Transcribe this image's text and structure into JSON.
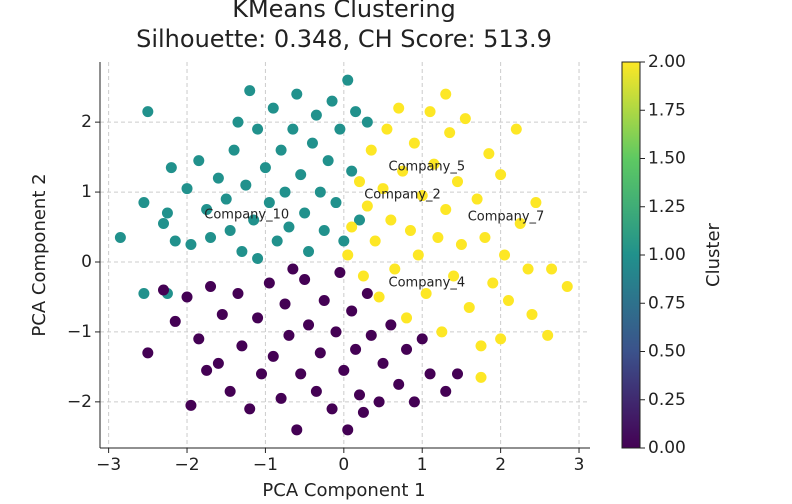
{
  "chart_data": {
    "type": "scatter",
    "title": "KMeans Clustering",
    "subtitle": "Silhouette: 0.348, CH Score: 513.9",
    "xlabel": "PCA Component 1",
    "ylabel": "PCA Component 2",
    "xlim": [
      -3.11,
      3.14
    ],
    "ylim": [
      -2.66,
      2.86
    ],
    "xticks": [
      {
        "value": -3,
        "label": "−3"
      },
      {
        "value": -2,
        "label": "−2"
      },
      {
        "value": -1,
        "label": "−1"
      },
      0,
      1,
      2,
      3
    ],
    "yticks": [
      {
        "value": -2,
        "label": "−2"
      },
      {
        "value": -1,
        "label": "−1"
      },
      0,
      1,
      2
    ],
    "grid": true,
    "x": [
      -2.85,
      -2.55,
      -2.3,
      -2.2,
      -2.25,
      -2.15,
      -2.0,
      -1.95,
      -1.85,
      -1.75,
      -1.7,
      -1.6,
      -1.5,
      -1.45,
      -1.4,
      -1.35,
      -1.3,
      -1.25,
      -1.2,
      -1.15,
      -1.1,
      -1.0,
      -0.95,
      -0.9,
      -0.85,
      -0.8,
      -0.75,
      -0.7,
      -0.65,
      -0.6,
      -0.55,
      -0.5,
      -0.45,
      -0.4,
      -0.35,
      -0.3,
      -0.25,
      -0.2,
      -0.15,
      -0.1,
      -0.05,
      0.0,
      0.05,
      0.1,
      0.15,
      0.2,
      -2.55,
      -2.25,
      -1.1,
      0.3,
      -2.5,
      0.05,
      0.1,
      0.2,
      0.25,
      0.3,
      0.35,
      0.4,
      0.45,
      0.5,
      0.55,
      0.6,
      0.65,
      0.7,
      0.75,
      0.8,
      0.85,
      0.9,
      0.95,
      1.0,
      1.05,
      1.1,
      1.15,
      1.2,
      1.25,
      1.3,
      1.35,
      1.4,
      1.45,
      1.5,
      1.55,
      1.6,
      1.7,
      1.75,
      1.8,
      1.85,
      1.9,
      2.0,
      2.05,
      2.1,
      2.2,
      2.25,
      2.35,
      2.4,
      2.45,
      2.6,
      2.65,
      2.85,
      1.75,
      1.3,
      2.0,
      -2.5,
      -2.3,
      -2.15,
      -2.0,
      -1.95,
      -1.85,
      -1.7,
      -1.6,
      -1.55,
      -1.45,
      -1.35,
      -1.3,
      -1.2,
      -1.1,
      -1.05,
      -0.95,
      -0.9,
      -0.8,
      -0.75,
      -0.7,
      -0.6,
      -0.55,
      -0.5,
      -0.45,
      -0.35,
      -0.3,
      -0.25,
      -0.15,
      -0.1,
      -0.05,
      0.0,
      0.05,
      0.1,
      0.15,
      0.2,
      0.3,
      0.35,
      0.45,
      0.5,
      0.6,
      0.7,
      0.8,
      0.9,
      1.0,
      1.1,
      1.3,
      1.45,
      0.25,
      -0.65,
      -1.75
    ],
    "y": [
      0.35,
      0.85,
      0.55,
      1.35,
      0.7,
      0.3,
      1.05,
      0.25,
      1.45,
      0.75,
      0.35,
      1.2,
      0.9,
      0.45,
      1.6,
      2.0,
      0.15,
      1.1,
      2.45,
      0.6,
      1.9,
      1.35,
      0.85,
      2.2,
      0.3,
      1.6,
      1.0,
      0.5,
      1.9,
      2.4,
      1.25,
      0.7,
      0.15,
      1.7,
      2.1,
      1.0,
      0.45,
      1.45,
      2.3,
      0.85,
      1.9,
      0.3,
      2.6,
      1.3,
      2.15,
      0.6,
      -0.45,
      -0.45,
      0.05,
      2.0,
      2.15,
      0.1,
      0.5,
      1.15,
      -0.2,
      0.8,
      1.6,
      0.3,
      -0.5,
      1.05,
      1.9,
      0.6,
      -0.1,
      2.2,
      1.3,
      -0.8,
      0.45,
      1.7,
      0.1,
      0.95,
      -0.45,
      2.15,
      1.4,
      0.35,
      -1.0,
      0.75,
      1.85,
      -0.2,
      1.15,
      0.25,
      2.05,
      -0.65,
      0.9,
      -1.2,
      0.35,
      1.55,
      -0.3,
      1.25,
      0.1,
      -0.55,
      1.9,
      0.55,
      -0.1,
      -0.75,
      0.85,
      -1.05,
      -0.1,
      -0.35,
      -1.65,
      2.4,
      -1.1,
      -1.3,
      -0.4,
      -0.85,
      -0.5,
      -2.05,
      -1.1,
      -0.35,
      -1.45,
      -0.75,
      -1.85,
      -0.45,
      -1.2,
      -2.1,
      -0.8,
      -1.6,
      -0.3,
      -1.35,
      -1.95,
      -0.6,
      -1.05,
      -2.4,
      -1.6,
      -0.25,
      -0.9,
      -1.85,
      -1.3,
      -0.55,
      -2.1,
      -1.0,
      -0.15,
      -1.55,
      -2.4,
      -0.7,
      -1.25,
      -1.9,
      -0.45,
      -1.05,
      -2.0,
      -1.45,
      -0.9,
      -1.75,
      -1.25,
      -2.0,
      -1.1,
      -1.6,
      -1.85,
      -1.6,
      -2.15,
      -0.1,
      -1.55
    ],
    "c": [
      1,
      1,
      1,
      1,
      1,
      1,
      1,
      1,
      1,
      1,
      1,
      1,
      1,
      1,
      1,
      1,
      1,
      1,
      1,
      1,
      1,
      1,
      1,
      1,
      1,
      1,
      1,
      1,
      1,
      1,
      1,
      1,
      1,
      1,
      1,
      1,
      1,
      1,
      1,
      1,
      1,
      1,
      1,
      1,
      1,
      1,
      1,
      1,
      1,
      1,
      1,
      2,
      2,
      2,
      2,
      2,
      2,
      2,
      2,
      2,
      2,
      2,
      2,
      2,
      2,
      2,
      2,
      2,
      2,
      2,
      2,
      2,
      2,
      2,
      2,
      2,
      2,
      2,
      2,
      2,
      2,
      2,
      2,
      2,
      2,
      2,
      2,
      2,
      2,
      2,
      2,
      2,
      2,
      2,
      2,
      2,
      2,
      2,
      2,
      2,
      2,
      0,
      0,
      0,
      0,
      0,
      0,
      0,
      0,
      0,
      0,
      0,
      0,
      0,
      0,
      0,
      0,
      0,
      0,
      0,
      0,
      0,
      0,
      0,
      0,
      0,
      0,
      0,
      0,
      0,
      0,
      0,
      0,
      0,
      0,
      0,
      0,
      0,
      0,
      0,
      0,
      0,
      0,
      0,
      0,
      0,
      0,
      0,
      0,
      0,
      0
    ],
    "annotations": [
      {
        "text": "Company_5",
        "x": 0.57,
        "y": 1.36
      },
      {
        "text": "Company_2",
        "x": 0.26,
        "y": 0.96
      },
      {
        "text": "Company_10",
        "x": -1.78,
        "y": 0.67
      },
      {
        "text": "Company_7",
        "x": 1.58,
        "y": 0.64
      },
      {
        "text": "Company_4",
        "x": 0.57,
        "y": -0.3
      }
    ],
    "colorbar": {
      "label": "Cluster",
      "lim": [
        0,
        2
      ],
      "ticks": [
        {
          "value": 0,
          "label": "0.00"
        },
        {
          "value": 0.25,
          "label": "0.25"
        },
        {
          "value": 0.5,
          "label": "0.50"
        },
        {
          "value": 0.75,
          "label": "0.75"
        },
        {
          "value": 1,
          "label": "1.00"
        },
        {
          "value": 1.25,
          "label": "1.25"
        },
        {
          "value": 1.5,
          "label": "1.50"
        },
        {
          "value": 1.75,
          "label": "1.75"
        },
        {
          "value": 2,
          "label": "2.00"
        }
      ],
      "colors": [
        "#440154",
        "#3b528b",
        "#21918c",
        "#5ec962",
        "#fde725"
      ]
    }
  }
}
